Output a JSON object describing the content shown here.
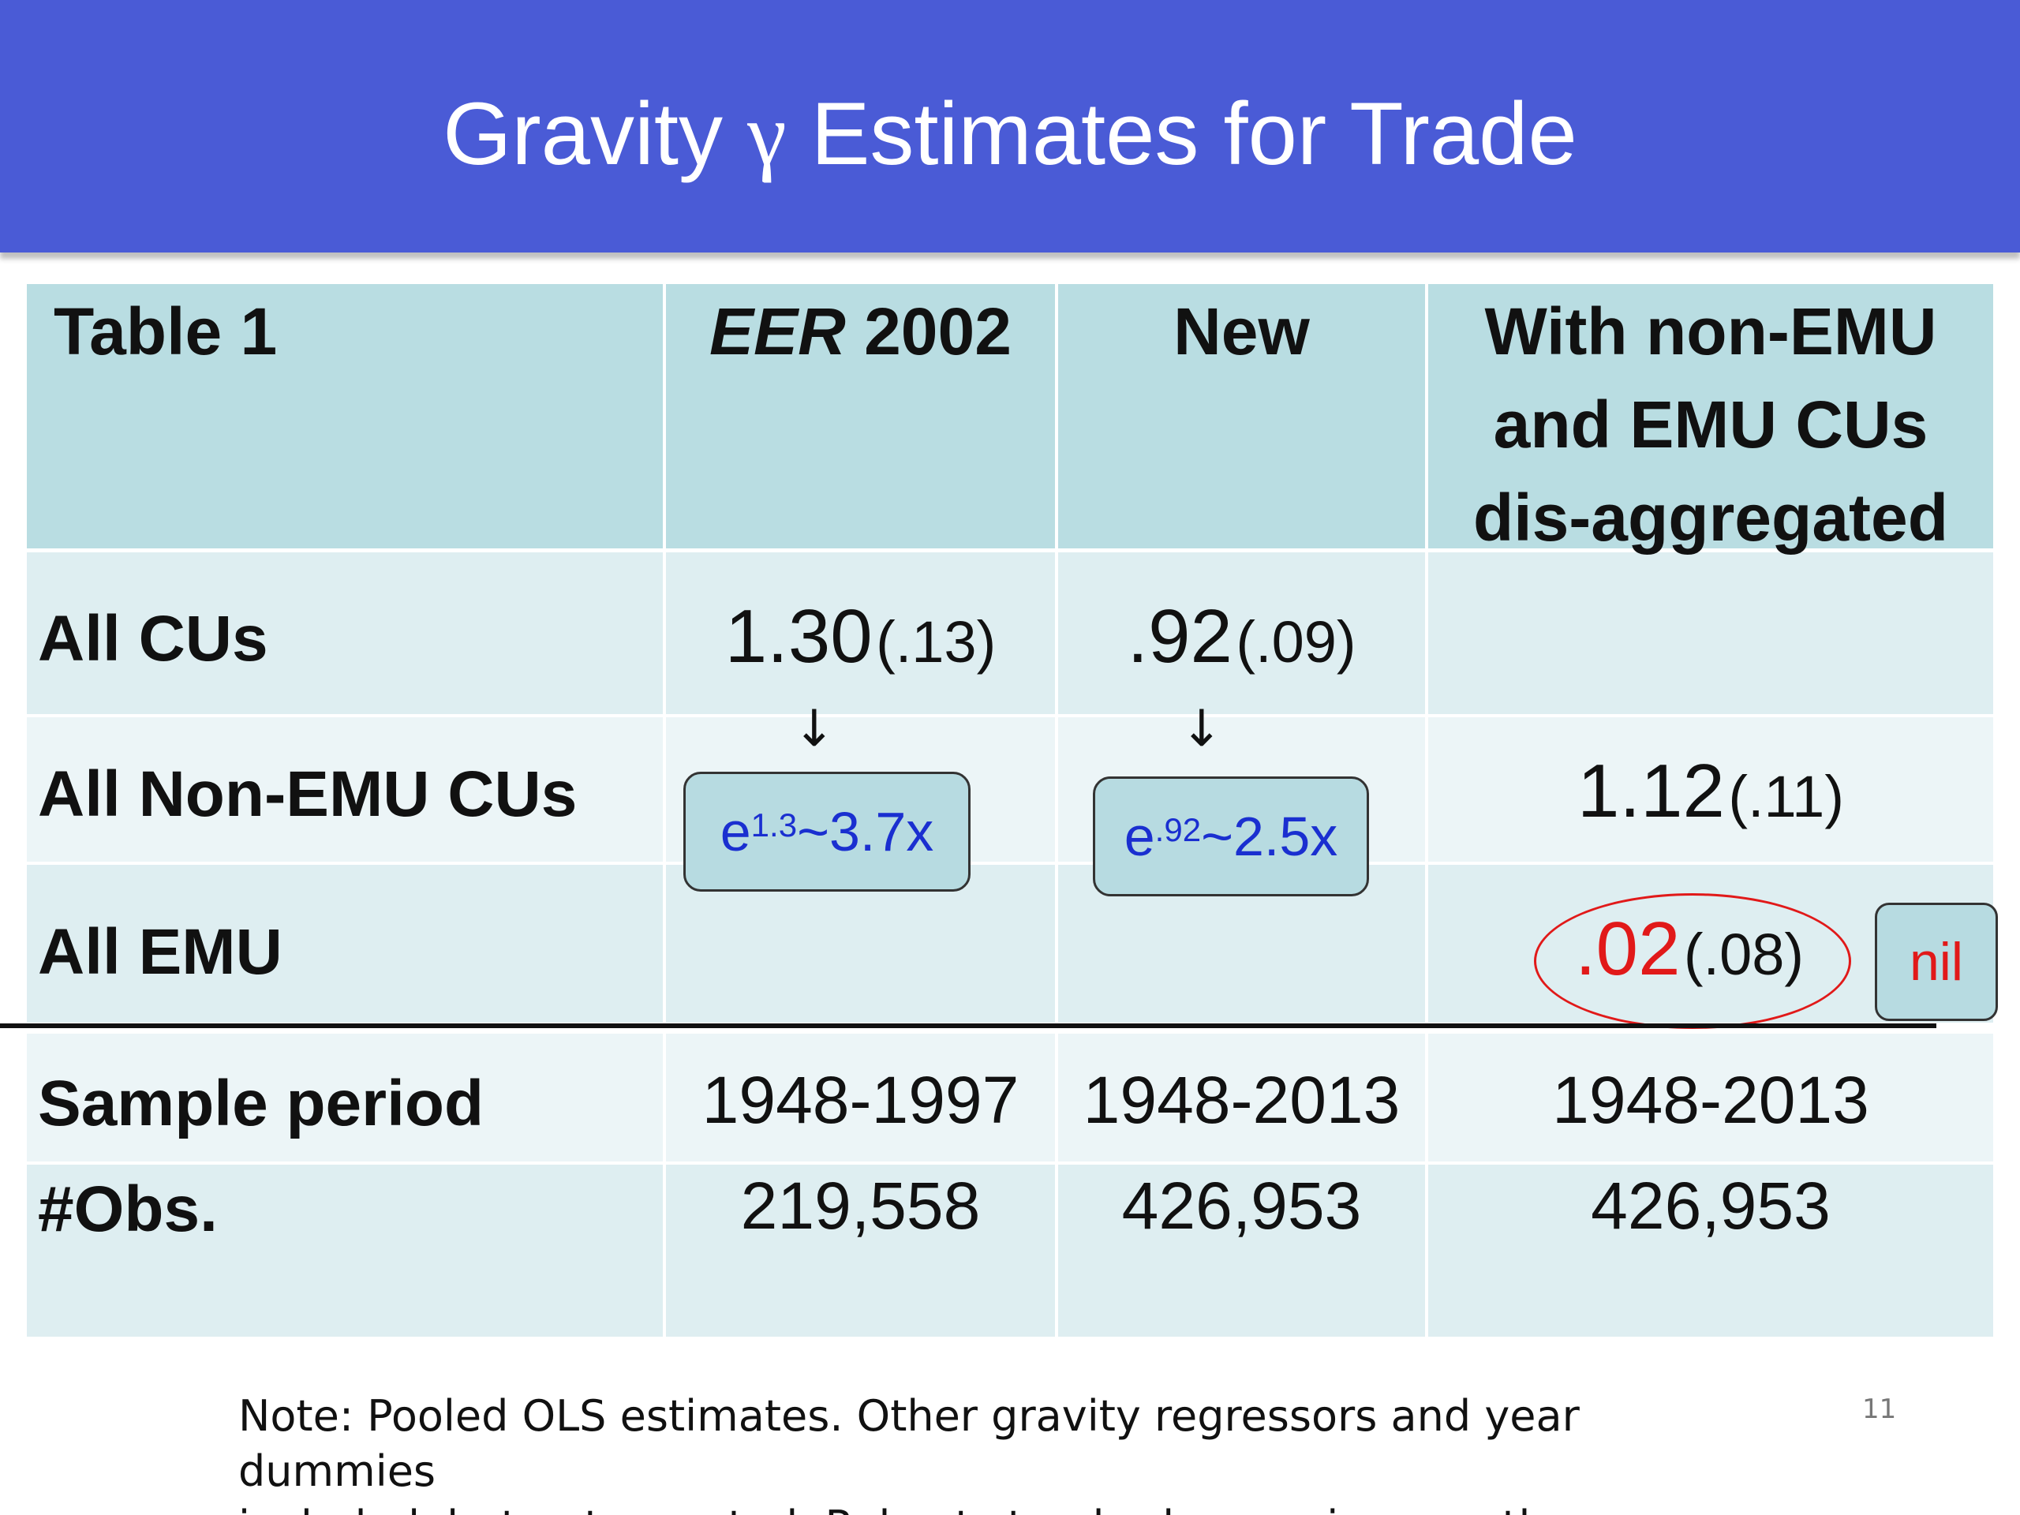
{
  "title": {
    "before": "Gravity ",
    "symbol": "γ",
    "after": " Estimates for Trade"
  },
  "table": {
    "header": {
      "label": "Table 1",
      "col1_italic": "EER",
      "col1_rest": " 2002",
      "col2": "New",
      "col3_line1": "With non-EMU",
      "col3_line2": "and EMU CUs",
      "col3_line3": "dis-aggregated"
    },
    "rows": {
      "all_cus": {
        "label": "All CUs",
        "col1_val": "1.30",
        "col1_se": "(.13)",
        "col2_val": ".92",
        "col2_se": "(.09)"
      },
      "non_emu": {
        "label": "All Non-EMU CUs",
        "col3_val": "1.12",
        "col3_se": "(.11)"
      },
      "emu": {
        "label": "All EMU",
        "col3_val": ".02",
        "col3_se": "(.08)"
      },
      "sample": {
        "label": "Sample period",
        "col1": "1948-1997",
        "col2": "1948-2013",
        "col3": "1948-2013"
      },
      "obs": {
        "label": "#Obs.",
        "col1": "219,558",
        "col2": "426,953",
        "col3": "426,953"
      }
    }
  },
  "annotations": {
    "arrow_glyph": "↓",
    "callout1": {
      "base": "e",
      "exp": "1.3",
      "rest": " ~3.7x"
    },
    "callout2": {
      "base": "e",
      "exp": ".92",
      "rest": " ~2.5x"
    },
    "nil": "nil"
  },
  "note": {
    "line1": "Note: Pooled OLS estimates. Other gravity regressors and year dummies",
    "line2": "included, but not reported. Robust standard errors in parentheses."
  },
  "page_number": "11",
  "colors": {
    "title_bar": "#4a5bd6",
    "header_fill": "#b9dde2",
    "row_fill_a": "#deeef1",
    "row_fill_b": "#ecf5f7",
    "callout_text": "#1a2fd0",
    "highlight_red": "#e11919"
  }
}
